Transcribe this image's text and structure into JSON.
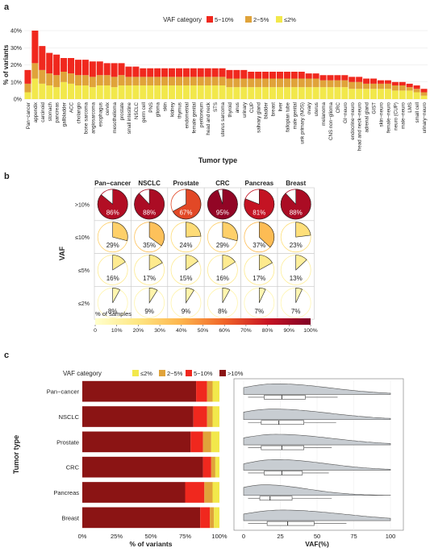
{
  "colors": {
    "vaf_5_10": "#f0281e",
    "vaf_2_5": "#e0a33a",
    "vaf_le2": "#f2e84b",
    "vaf_gt10": "#8b1414",
    "violin_fill": "#c8cdd2",
    "panel_border": "#888888"
  },
  "chart_data": [
    {
      "panel": "a",
      "type": "bar",
      "stacked": true,
      "title": "",
      "xlabel": "Tumor type",
      "ylabel": "% of variants",
      "ylim": [
        0,
        40
      ],
      "yticks": [
        "0%",
        "10%",
        "20%",
        "30%",
        "40%"
      ],
      "legend_title": "VAF category",
      "legend_position": "top-right",
      "categories": [
        "Pan−cancer",
        "appendix",
        "carcinoid",
        "stomach",
        "pancreas",
        "gallbladder",
        "ACC",
        "cholangio",
        "bone sarcoma",
        "angiosarcoma",
        "esophagus",
        "cervix",
        "mesothelioma",
        "prostate",
        "small intestine",
        "NSCLC",
        "germ cell",
        "PNS",
        "glioma",
        "skin",
        "kidney",
        "thymus",
        "endometrial",
        "female genital",
        "peritoneum",
        "head and neck",
        "STS",
        "uterus sarcoma",
        "thyroid",
        "anus",
        "urinary",
        "CUP",
        "salivary gland",
        "bladder",
        "breast",
        "liver",
        "fallopian tube",
        "male genital",
        "unk primary (NOS)",
        "ovary",
        "uterus",
        "melanoma",
        "CNS non−glioma",
        "CRC",
        "GI−neuro",
        "endocrine−neuro",
        "head and neck−neuro",
        "adrenal gland",
        "GIST",
        "skin−neuro",
        "female−neuro",
        "neuro (CUP)",
        "male−neuro",
        "LMS",
        "small cell",
        "urinary−neuro"
      ],
      "series": [
        {
          "name": "5−10%",
          "values": [
            8,
            19,
            14,
            12,
            12,
            8,
            9,
            9,
            9,
            9,
            8,
            7,
            8,
            7,
            6,
            6,
            5,
            5,
            5,
            5,
            5,
            5,
            5,
            5,
            5,
            5,
            5,
            5,
            5,
            5,
            5,
            4,
            4,
            4,
            4,
            4,
            4,
            4,
            4,
            3,
            3,
            3,
            3,
            3,
            3,
            3,
            3,
            3,
            3,
            2,
            2,
            2,
            2,
            2,
            2,
            2
          ]
        },
        {
          "name": "2−5%",
          "values": [
            5,
            9,
            8,
            7,
            7,
            6,
            6,
            6,
            6,
            6,
            6,
            6,
            6,
            6,
            5,
            5,
            5,
            5,
            5,
            5,
            5,
            5,
            5,
            5,
            5,
            5,
            5,
            5,
            5,
            5,
            5,
            5,
            5,
            5,
            5,
            5,
            5,
            5,
            5,
            5,
            5,
            4,
            4,
            4,
            4,
            4,
            4,
            3,
            3,
            3,
            3,
            3,
            3,
            2,
            2,
            2
          ]
        },
        {
          "name": "≤2%",
          "values": [
            4,
            12,
            9,
            8,
            7,
            10,
            9,
            8,
            8,
            7,
            8,
            8,
            7,
            8,
            8,
            8,
            8,
            8,
            8,
            8,
            8,
            8,
            8,
            8,
            8,
            8,
            8,
            8,
            7,
            7,
            7,
            7,
            7,
            7,
            7,
            7,
            7,
            7,
            7,
            7,
            7,
            7,
            7,
            7,
            7,
            6,
            6,
            6,
            6,
            6,
            6,
            5,
            5,
            5,
            4,
            2
          ]
        }
      ]
    },
    {
      "panel": "b",
      "type": "pie",
      "ylabel": "VAF",
      "columns": [
        "Pan−cancer",
        "NSCLC",
        "Prostate",
        "CRC",
        "Pancreas",
        "Breast"
      ],
      "rows": [
        ">10%",
        "≤10%",
        "≤5%",
        "≤2%"
      ],
      "values": [
        [
          86,
          88,
          67,
          95,
          81,
          88
        ],
        [
          29,
          35,
          24,
          29,
          37,
          23
        ],
        [
          16,
          17,
          15,
          16,
          17,
          13
        ],
        [
          8,
          9,
          9,
          8,
          7,
          7
        ]
      ],
      "labels": [
        [
          "86%",
          "88%",
          "67%",
          "95%",
          "81%",
          "88%"
        ],
        [
          "29%",
          "35%",
          "24%",
          "29%",
          "37%",
          "23%"
        ],
        [
          "16%",
          "17%",
          "15%",
          "16%",
          "17%",
          "13%"
        ],
        [
          "8%",
          "9%",
          "9%",
          "8%",
          "7%",
          "7%"
        ]
      ],
      "colorbar_title": "% of samples",
      "colorbar_ticks": [
        "0",
        "10%",
        "20%",
        "30%",
        "40%",
        "50%",
        "60%",
        "70%",
        "80%",
        "90%",
        "100%"
      ]
    },
    {
      "panel": "c-left",
      "type": "bar",
      "orientation": "horizontal",
      "stacked": true,
      "legend_title": "VAF category",
      "legend_position": "top",
      "legend_labels": [
        "≤2%",
        "2−5%",
        "5−10%",
        ">10%"
      ],
      "ylabel": "Tumor type",
      "xlabel": "% of variants",
      "xticks": [
        "0%",
        "25%",
        "50%",
        "75%",
        "100%"
      ],
      "categories": [
        "Pan−cancer",
        "NSCLC",
        "Prostate",
        "CRC",
        "Pancreas",
        "Breast"
      ],
      "series": [
        {
          "name": ">10%",
          "values": [
            83,
            81,
            79,
            88,
            75,
            86
          ]
        },
        {
          "name": "5−10%",
          "values": [
            8,
            10,
            9,
            6,
            14,
            7
          ]
        },
        {
          "name": "2−5%",
          "values": [
            4,
            4,
            6,
            3,
            6,
            3
          ]
        },
        {
          "name": "≤2%",
          "values": [
            5,
            5,
            6,
            3,
            5,
            4
          ]
        }
      ]
    },
    {
      "panel": "c-right",
      "type": "violin",
      "xlabel": "VAF(%)",
      "xlim": [
        0,
        100
      ],
      "xticks": [
        "0",
        "25",
        "50",
        "75",
        "100"
      ],
      "categories": [
        "Pan−cancer",
        "NSCLC",
        "Prostate",
        "CRC",
        "Pancreas",
        "Breast"
      ],
      "box": [
        {
          "q1": 14,
          "median": 26,
          "q3": 42,
          "whisker_low": 3,
          "whisker_high": 64
        },
        {
          "q1": 12,
          "median": 24,
          "q3": 41,
          "whisker_low": 3,
          "whisker_high": 63
        },
        {
          "q1": 12,
          "median": 26,
          "q3": 41,
          "whisker_low": 3,
          "whisker_high": 60
        },
        {
          "q1": 14,
          "median": 26,
          "q3": 40,
          "whisker_low": 3,
          "whisker_high": 58
        },
        {
          "q1": 11,
          "median": 18,
          "q3": 33,
          "whisker_low": 3,
          "whisker_high": 60
        },
        {
          "q1": 16,
          "median": 30,
          "q3": 48,
          "whisker_low": 3,
          "whisker_high": 70
        }
      ]
    }
  ],
  "panel_labels": [
    "a",
    "b",
    "c"
  ]
}
